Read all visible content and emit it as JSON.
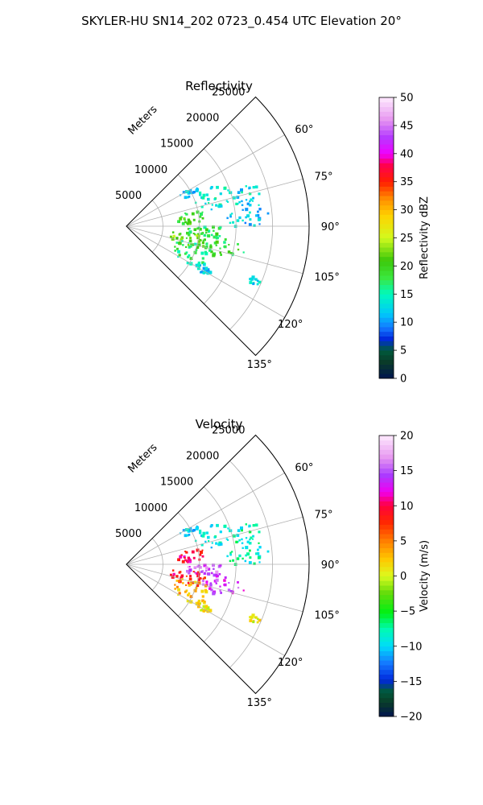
{
  "figure": {
    "title": "SKYLER-HU  SN14_202  0723_0.454 UTC Elevation 20°"
  },
  "chart_data": [
    {
      "type": "polar_wedge",
      "title": "Reflectivity",
      "radial_label": "Meters",
      "r_ticks": [
        5000,
        10000,
        15000,
        20000,
        25000
      ],
      "r_tick_labels": [
        "5000",
        "10000",
        "15000",
        "20000",
        "25000"
      ],
      "r_max": 25000,
      "theta_range_deg": [
        45,
        135
      ],
      "theta_ticks": [
        60,
        75,
        90,
        105,
        120,
        135
      ],
      "theta_tick_labels": [
        "60°",
        "75°",
        "90°",
        "105°",
        "120°",
        "135°"
      ],
      "grid": true,
      "colorbar": {
        "label": "Reflectivity dBZ",
        "range": [
          0,
          50
        ],
        "ticks": [
          0,
          5,
          10,
          15,
          20,
          25,
          30,
          35,
          40,
          45,
          50
        ],
        "tick_labels": [
          "0",
          "5",
          "10",
          "15",
          "20",
          "25",
          "30",
          "35",
          "40",
          "45",
          "50"
        ],
        "colormap": "pyart_HomeyerRainbow"
      },
      "echo_regions": [
        {
          "theta": 62,
          "r": 9500,
          "r_extent": 1500,
          "theta_extent": 3,
          "value": 12
        },
        {
          "theta": 72,
          "r": 12500,
          "r_extent": 2500,
          "theta_extent": 8,
          "value": 14
        },
        {
          "theta": 76,
          "r": 17000,
          "r_extent": 2000,
          "theta_extent": 5,
          "value": 13
        },
        {
          "theta": 83,
          "r": 9000,
          "r_extent": 2000,
          "theta_extent": 6,
          "value": 20
        },
        {
          "theta": 85,
          "r": 16500,
          "r_extent": 3000,
          "theta_extent": 6,
          "value": 12
        },
        {
          "theta": 95,
          "r": 11000,
          "r_extent": 3000,
          "theta_extent": 6,
          "value": 18
        },
        {
          "theta": 102,
          "r": 8500,
          "r_extent": 2500,
          "theta_extent": 8,
          "value": 22
        },
        {
          "theta": 103,
          "r": 13500,
          "r_extent": 3000,
          "theta_extent": 6,
          "value": 19
        },
        {
          "theta": 112,
          "r": 9500,
          "r_extent": 2500,
          "theta_extent": 10,
          "value": 17
        },
        {
          "theta": 118,
          "r": 12000,
          "r_extent": 1500,
          "theta_extent": 4,
          "value": 12
        },
        {
          "theta": 113,
          "r": 19000,
          "r_extent": 800,
          "theta_extent": 2,
          "value": 13
        }
      ]
    },
    {
      "type": "polar_wedge",
      "title": "Velocity",
      "radial_label": "Meters",
      "r_ticks": [
        5000,
        10000,
        15000,
        20000,
        25000
      ],
      "r_tick_labels": [
        "5000",
        "10000",
        "15000",
        "20000",
        "25000"
      ],
      "r_max": 25000,
      "theta_range_deg": [
        45,
        135
      ],
      "theta_ticks": [
        60,
        75,
        90,
        105,
        120,
        135
      ],
      "theta_tick_labels": [
        "60°",
        "75°",
        "90°",
        "105°",
        "120°",
        "135°"
      ],
      "grid": true,
      "colorbar": {
        "label": "Velocity (m/s)",
        "range": [
          -20,
          20
        ],
        "ticks": [
          -20,
          -15,
          -10,
          -5,
          0,
          5,
          10,
          15,
          20
        ],
        "tick_labels": [
          "−20",
          "−15",
          "−10",
          "−5",
          "0",
          "5",
          "10",
          "15",
          "20"
        ],
        "colormap": "pyart_BuDRd18"
      },
      "echo_regions": [
        {
          "theta": 62,
          "r": 9500,
          "r_extent": 1500,
          "theta_extent": 3,
          "value": -10
        },
        {
          "theta": 72,
          "r": 12500,
          "r_extent": 2500,
          "theta_extent": 8,
          "value": -9
        },
        {
          "theta": 76,
          "r": 17000,
          "r_extent": 2000,
          "theta_extent": 5,
          "value": -8
        },
        {
          "theta": 83,
          "r": 9000,
          "r_extent": 2000,
          "theta_extent": 6,
          "value": 10
        },
        {
          "theta": 85,
          "r": 16500,
          "r_extent": 3000,
          "theta_extent": 6,
          "value": -8
        },
        {
          "theta": 95,
          "r": 11000,
          "r_extent": 3000,
          "theta_extent": 6,
          "value": 15
        },
        {
          "theta": 102,
          "r": 8500,
          "r_extent": 2500,
          "theta_extent": 8,
          "value": 9
        },
        {
          "theta": 103,
          "r": 13500,
          "r_extent": 3000,
          "theta_extent": 6,
          "value": 14
        },
        {
          "theta": 112,
          "r": 9500,
          "r_extent": 2500,
          "theta_extent": 10,
          "value": 3
        },
        {
          "theta": 118,
          "r": 12000,
          "r_extent": 1500,
          "theta_extent": 4,
          "value": 1
        },
        {
          "theta": 113,
          "r": 19000,
          "r_extent": 800,
          "theta_extent": 2,
          "value": 1
        }
      ]
    }
  ]
}
